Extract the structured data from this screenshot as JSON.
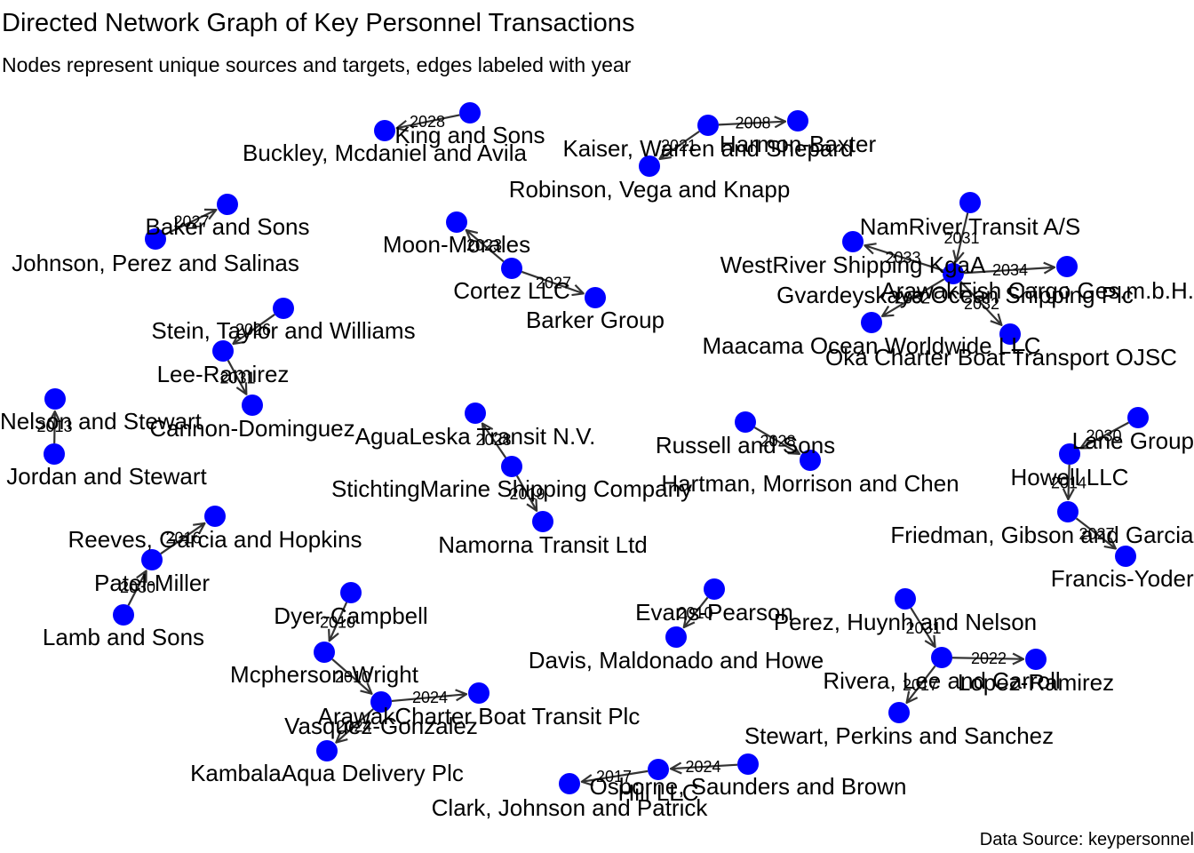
{
  "title": "Directed Network Graph of Key Personnel Transactions",
  "subtitle": "Nodes represent unique sources and targets, edges labeled with year",
  "caption": "Data Source: keypersonnel",
  "colors": {
    "node": "#0000ff",
    "edge": "#333333",
    "text": "#000000"
  },
  "nodes": [
    {
      "id": "n1",
      "label": "King and Sons"
    },
    {
      "id": "n2",
      "label": "Buckley, Mcdaniel and Avila"
    },
    {
      "id": "n3",
      "label": "Harmon-Baxter"
    },
    {
      "id": "n4",
      "label": "Kaiser, Warren and Shepard"
    },
    {
      "id": "n5",
      "label": "Robinson, Vega and Knapp"
    },
    {
      "id": "n6",
      "label": "Baker and Sons"
    },
    {
      "id": "n7",
      "label": "Johnson, Perez and Salinas"
    },
    {
      "id": "n8",
      "label": "Moon-Morales"
    },
    {
      "id": "n9",
      "label": "Cortez LLC"
    },
    {
      "id": "n10",
      "label": "Barker Group"
    },
    {
      "id": "n11",
      "label": "NamRiver Transit A/S"
    },
    {
      "id": "n12",
      "label": "WestRiver Shipping KgaA"
    },
    {
      "id": "n13",
      "label": "ArawakFish Cargo Ges.m.b.H."
    },
    {
      "id": "n14",
      "label": "Gvardeyskaya Ocean Shipping Plc"
    },
    {
      "id": "n15",
      "label": "Maacama Ocean Worldwide LLC"
    },
    {
      "id": "n16",
      "label": "Oka Charter Boat Transport OJSC"
    },
    {
      "id": "n17",
      "label": "Stein, Taylor and Williams"
    },
    {
      "id": "n18",
      "label": "Lee-Ramirez"
    },
    {
      "id": "n19",
      "label": "Cannon-Dominguez"
    },
    {
      "id": "n20",
      "label": "Nelson and Stewart"
    },
    {
      "id": "n21",
      "label": "Jordan and Stewart"
    },
    {
      "id": "n22",
      "label": "AguaLeska Transit N.V."
    },
    {
      "id": "n23",
      "label": "StichtingMarine Shipping Company"
    },
    {
      "id": "n24",
      "label": "Namorna Transit Ltd"
    },
    {
      "id": "n25",
      "label": "Russell and Sons"
    },
    {
      "id": "n26",
      "label": "Hartman, Morrison and Chen"
    },
    {
      "id": "n27",
      "label": "Lane Group"
    },
    {
      "id": "n28",
      "label": "Howell LLC"
    },
    {
      "id": "n29",
      "label": "Friedman, Gibson and Garcia"
    },
    {
      "id": "n30",
      "label": "Francis-Yoder"
    },
    {
      "id": "n31",
      "label": "Reeves, Garcia and Hopkins"
    },
    {
      "id": "n32",
      "label": "Patel-Miller"
    },
    {
      "id": "n33",
      "label": "Lamb and Sons"
    },
    {
      "id": "n34",
      "label": "Dyer-Campbell"
    },
    {
      "id": "n35",
      "label": "Mcpherson-Wright"
    },
    {
      "id": "n36",
      "label": "Vasquez-Gonzalez"
    },
    {
      "id": "n37",
      "label": "ArawakCharter Boat Transit Plc"
    },
    {
      "id": "n38",
      "label": "KambalaAqua Delivery Plc"
    },
    {
      "id": "n39",
      "label": "Evans-Pearson"
    },
    {
      "id": "n40",
      "label": "Davis, Maldonado and Howe"
    },
    {
      "id": "n41",
      "label": "Perez, Huynh and Nelson"
    },
    {
      "id": "n42",
      "label": "Lopez-Ramirez"
    },
    {
      "id": "n43",
      "label": "Rivera, Lee and Carroll"
    },
    {
      "id": "n44",
      "label": "Stewart, Perkins and Sanchez"
    },
    {
      "id": "n45",
      "label": "Osborne, Saunders and Brown"
    },
    {
      "id": "n46",
      "label": "Hill LLC"
    },
    {
      "id": "n47",
      "label": "Clark, Johnson and Patrick"
    }
  ],
  "edges": [
    {
      "from": "n1",
      "to": "n2",
      "label": "2028"
    },
    {
      "from": "n4",
      "to": "n3",
      "label": "2008"
    },
    {
      "from": "n4",
      "to": "n5",
      "label": "2021"
    },
    {
      "from": "n7",
      "to": "n6",
      "label": "2027"
    },
    {
      "from": "n9",
      "to": "n8",
      "label": "2023"
    },
    {
      "from": "n9",
      "to": "n10",
      "label": "2027"
    },
    {
      "from": "n11",
      "to": "n13",
      "label": "2031"
    },
    {
      "from": "n13",
      "to": "n12",
      "label": "2033"
    },
    {
      "from": "n13",
      "to": "n14",
      "label": "2034"
    },
    {
      "from": "n13",
      "to": "n15",
      "label": "2032"
    },
    {
      "from": "n13",
      "to": "n16",
      "label": "2032"
    },
    {
      "from": "n17",
      "to": "n18",
      "label": "2026"
    },
    {
      "from": "n18",
      "to": "n19",
      "label": "2031"
    },
    {
      "from": "n21",
      "to": "n20",
      "label": "2013"
    },
    {
      "from": "n23",
      "to": "n22",
      "label": "2028"
    },
    {
      "from": "n23",
      "to": "n24",
      "label": "2019"
    },
    {
      "from": "n25",
      "to": "n26",
      "label": "2028"
    },
    {
      "from": "n27",
      "to": "n28",
      "label": "2030"
    },
    {
      "from": "n28",
      "to": "n29",
      "label": "2014"
    },
    {
      "from": "n29",
      "to": "n30",
      "label": "2027"
    },
    {
      "from": "n32",
      "to": "n31",
      "label": "2016"
    },
    {
      "from": "n33",
      "to": "n32",
      "label": "2030"
    },
    {
      "from": "n34",
      "to": "n35",
      "label": "2010"
    },
    {
      "from": "n35",
      "to": "n36",
      "label": "2010"
    },
    {
      "from": "n36",
      "to": "n37",
      "label": "2024"
    },
    {
      "from": "n36",
      "to": "n38",
      "label": "2024"
    },
    {
      "from": "n39",
      "to": "n40",
      "label": "2010"
    },
    {
      "from": "n41",
      "to": "n43",
      "label": "2031"
    },
    {
      "from": "n43",
      "to": "n42",
      "label": "2022"
    },
    {
      "from": "n43",
      "to": "n44",
      "label": "2017"
    },
    {
      "from": "n45",
      "to": "n46",
      "label": "2024"
    },
    {
      "from": "n46",
      "to": "n47",
      "label": "2017"
    }
  ]
}
